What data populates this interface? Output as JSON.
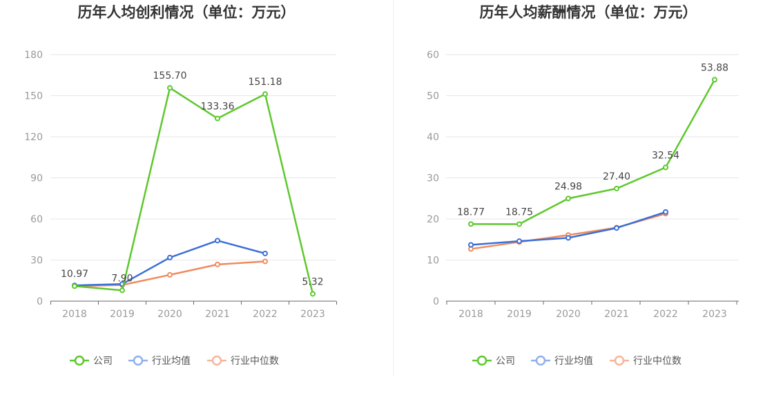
{
  "chart_data": [
    {
      "type": "line",
      "title": "历年人均创利情况（单位：万元）",
      "categories": [
        "2018",
        "2019",
        "2020",
        "2021",
        "2022",
        "2023"
      ],
      "ylim": [
        0,
        180
      ],
      "yticks": [
        0,
        30,
        60,
        90,
        120,
        150,
        180
      ],
      "grid": true,
      "legend_position": "bottom",
      "series": [
        {
          "name": "公司",
          "color": "#5cc82c",
          "values": [
            10.97,
            7.9,
            155.7,
            133.36,
            151.18,
            5.32
          ],
          "labels": [
            "10.97",
            "7.90",
            "155.70",
            "133.36",
            "151.18",
            "5.32"
          ]
        },
        {
          "name": "行业均值",
          "color": "#3b6fd6",
          "values": [
            11.5,
            12.5,
            31.8,
            44.2,
            34.8,
            null
          ]
        },
        {
          "name": "行业中位数",
          "color": "#f08a5d",
          "values": [
            11.0,
            11.8,
            19.2,
            26.8,
            29.0,
            null
          ]
        }
      ]
    },
    {
      "type": "line",
      "title": "历年人均薪酬情况（单位：万元）",
      "categories": [
        "2018",
        "2019",
        "2020",
        "2021",
        "2022",
        "2023"
      ],
      "ylim": [
        0,
        60
      ],
      "yticks": [
        0,
        10,
        20,
        30,
        40,
        50,
        60
      ],
      "grid": true,
      "legend_position": "bottom",
      "series": [
        {
          "name": "公司",
          "color": "#5cc82c",
          "values": [
            18.77,
            18.75,
            24.98,
            27.4,
            32.54,
            53.88
          ],
          "labels": [
            "18.77",
            "18.75",
            "24.98",
            "27.40",
            "32.54",
            "53.88"
          ]
        },
        {
          "name": "行业均值",
          "color": "#3b6fd6",
          "values": [
            13.7,
            14.6,
            15.4,
            17.8,
            21.7,
            null
          ]
        },
        {
          "name": "行业中位数",
          "color": "#f08a5d",
          "values": [
            12.7,
            14.4,
            16.1,
            17.9,
            21.3,
            null
          ]
        }
      ]
    }
  ]
}
